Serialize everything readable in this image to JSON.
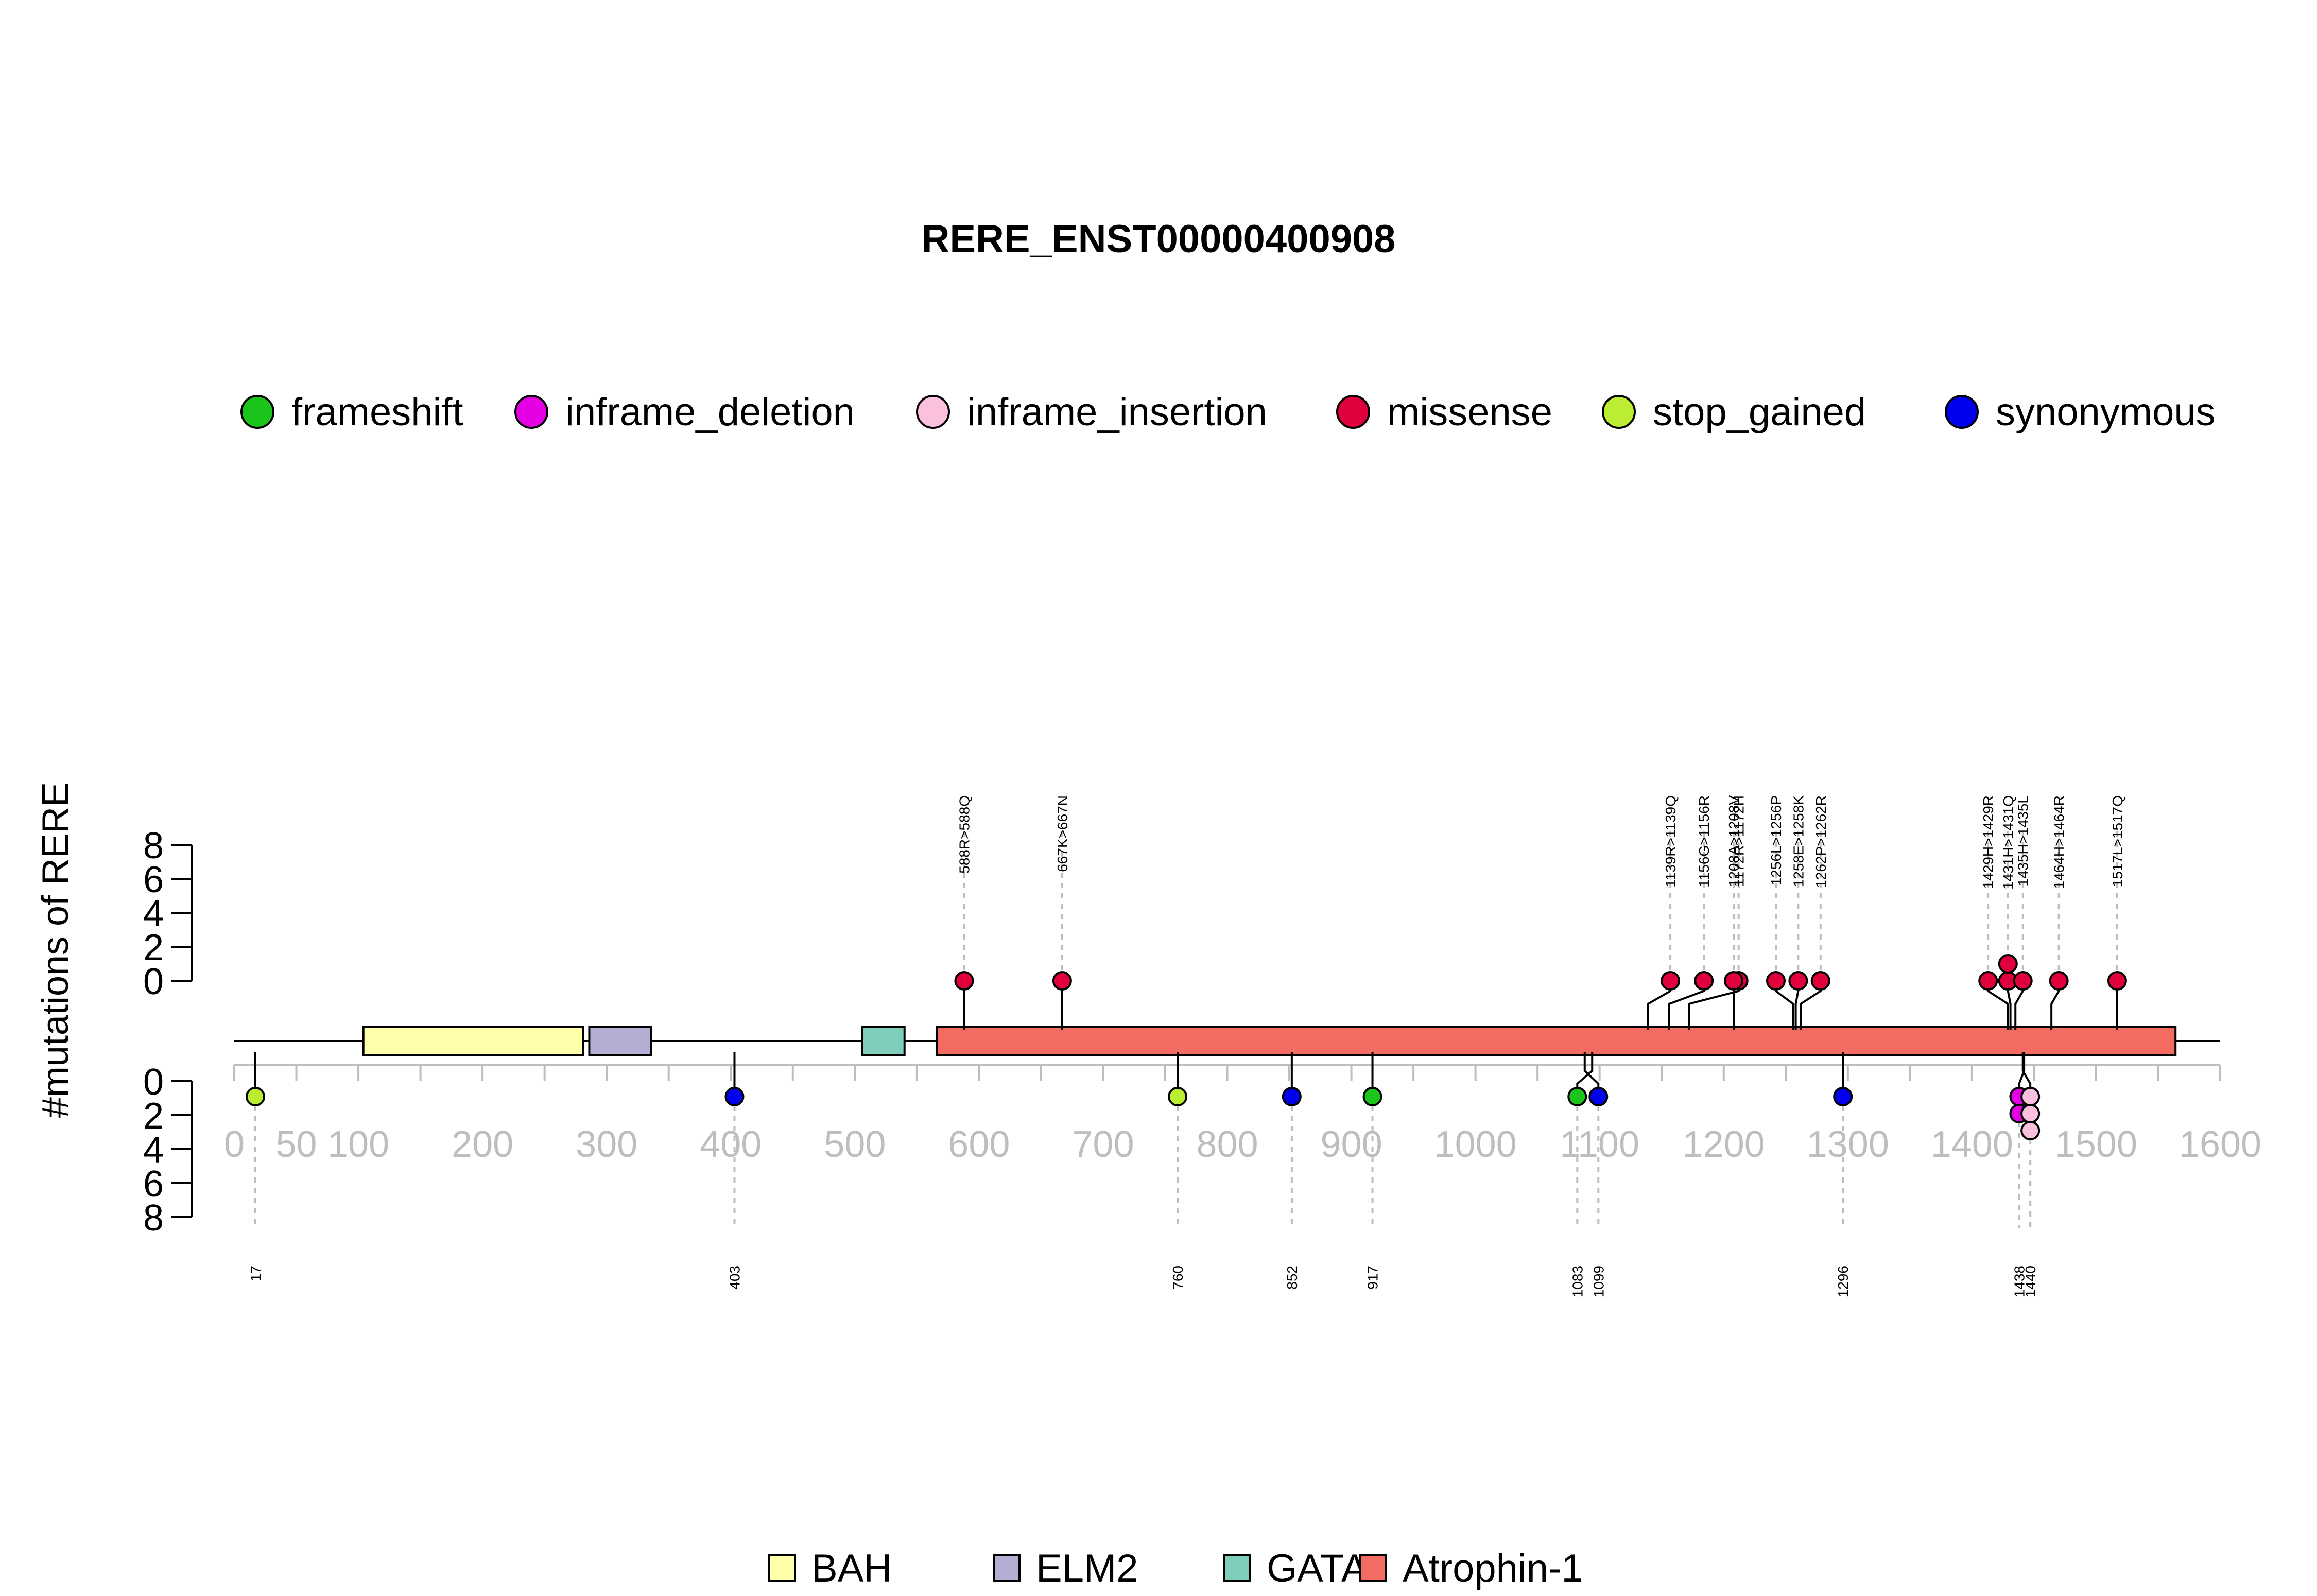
{
  "chart_data": {
    "type": "lollipop",
    "title": "RERE_ENST00000400908",
    "ylabel": "#mutations of RERE",
    "xlim": [
      0,
      1600
    ],
    "x_ticks": [
      0,
      50,
      100,
      200,
      300,
      400,
      500,
      600,
      700,
      800,
      900,
      1000,
      1100,
      1200,
      1300,
      1400,
      1500,
      1600
    ],
    "x_tick_labels": [
      "0",
      "50",
      "100",
      "200",
      "300",
      "400",
      "500",
      "600",
      "700",
      "800",
      "900",
      "1000",
      "1100",
      "1200",
      "1300",
      "1400",
      "1500",
      "1600"
    ],
    "y_ticks": [
      0,
      2,
      4,
      6,
      8
    ],
    "y_tick_labels": [
      "0",
      "2",
      "4",
      "6",
      "8"
    ],
    "protein_length": 1566,
    "mutation_legend": [
      {
        "name": "frameshift",
        "color": "#1BC41B"
      },
      {
        "name": "inframe_deletion",
        "color": "#E300E3"
      },
      {
        "name": "inframe_insertion",
        "color": "#FCC0DF"
      },
      {
        "name": "missense",
        "color": "#E0003B"
      },
      {
        "name": "stop_gained",
        "color": "#BBEE33"
      },
      {
        "name": "synonymous",
        "color": "#0000EE"
      }
    ],
    "domains": [
      {
        "name": "BAH",
        "start": 104,
        "end": 281,
        "color": "#FFFFA9"
      },
      {
        "name": "ELM2",
        "start": 286,
        "end": 336,
        "color": "#B3AED4"
      },
      {
        "name": "GATA",
        "start": 506,
        "end": 540,
        "color": "#7FCDBB"
      },
      {
        "name": "Atrophin-1",
        "start": 566,
        "end": 1564,
        "color": "#F46B62"
      }
    ],
    "upper_mutations": [
      {
        "pos": 588,
        "count": 1,
        "type": "missense",
        "label": "588R>588Q"
      },
      {
        "pos": 667,
        "count": 1,
        "type": "missense",
        "label": "667K>667N"
      },
      {
        "pos": 1139,
        "count": 1,
        "type": "missense",
        "label": "1139R>1139Q"
      },
      {
        "pos": 1156,
        "count": 1,
        "type": "missense",
        "label": "1156G>1156R"
      },
      {
        "pos": 1172,
        "count": 1,
        "type": "missense",
        "label": "1172R>1172H"
      },
      {
        "pos": 1208,
        "count": 1,
        "type": "missense",
        "label": "1208A>1208V"
      },
      {
        "pos": 1256,
        "count": 1,
        "type": "missense",
        "label": "1256L>1256P"
      },
      {
        "pos": 1258,
        "count": 1,
        "type": "missense",
        "label": "1258E>1258K"
      },
      {
        "pos": 1262,
        "count": 1,
        "type": "missense",
        "label": "1262P>1262R"
      },
      {
        "pos": 1429,
        "count": 1,
        "type": "missense",
        "label": "1429H>1429R"
      },
      {
        "pos": 1431,
        "count": 2,
        "type": "missense",
        "label": "1431H>1431Q"
      },
      {
        "pos": 1435,
        "count": 1,
        "type": "missense",
        "label": "1435H>1435L"
      },
      {
        "pos": 1464,
        "count": 1,
        "type": "missense",
        "label": "1464H>1464R"
      },
      {
        "pos": 1517,
        "count": 1,
        "type": "missense",
        "label": "1517L>1517Q"
      }
    ],
    "lower_mutations": [
      {
        "pos": 17,
        "types": [
          "stop_gained"
        ],
        "label": "17"
      },
      {
        "pos": 403,
        "types": [
          "synonymous"
        ],
        "label": "403"
      },
      {
        "pos": 760,
        "types": [
          "stop_gained"
        ],
        "label": "760"
      },
      {
        "pos": 852,
        "types": [
          "synonymous"
        ],
        "label": "852"
      },
      {
        "pos": 917,
        "types": [
          "frameshift"
        ],
        "label": "917"
      },
      {
        "pos": 1083,
        "types": [
          "frameshift"
        ],
        "label": "1083"
      },
      {
        "pos": 1099,
        "types": [
          "synonymous"
        ],
        "label": "1099"
      },
      {
        "pos": 1296,
        "types": [
          "synonymous"
        ],
        "label": "1296"
      },
      {
        "pos": 1438,
        "types": [
          "inframe_deletion",
          "inframe_deletion"
        ],
        "label": "1438"
      },
      {
        "pos": 1440,
        "types": [
          "inframe_insertion",
          "inframe_insertion",
          "inframe_insertion"
        ],
        "label": "1440"
      }
    ]
  }
}
